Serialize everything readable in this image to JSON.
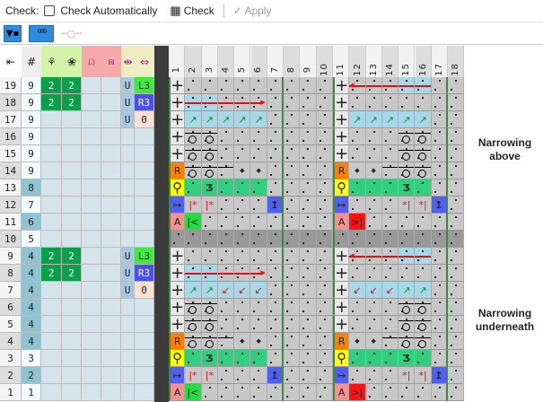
{
  "toolbar": {
    "check_label": "Check:",
    "check_auto_label": "Check Automatically",
    "check_auto_checked": false,
    "check_button": "Check",
    "apply_button": "Apply"
  },
  "toolbar2": {
    "filter_icon": "filter-icon",
    "cable_icon": "cable-icon",
    "cable_outline_icon": "cable-outline-icon"
  },
  "header": {
    "first": "⇤",
    "count": "#",
    "columns": [
      "1",
      "2",
      "3",
      "4",
      "5",
      "6",
      "7",
      "8",
      "9",
      "10",
      "11",
      "12",
      "13",
      "14",
      "15",
      "16",
      "17",
      "18"
    ]
  },
  "colors": {
    "green_header": "#d4f5a8",
    "pink_header": "#f7a8a8",
    "beige_header": "#efecc2",
    "dark_green": "#0aa04a",
    "L3": "#40e840",
    "R3": "#4a50f0",
    "zero": "#fbe2d0",
    "U": "#a8c8e0",
    "teal": "#8fc4d0"
  },
  "rows": [
    {
      "n": "19",
      "c": "9",
      "a": "2",
      "b": "2",
      "u": "U",
      "v": "L3",
      "t": false
    },
    {
      "n": "18",
      "c": "9",
      "a": "2",
      "b": "2",
      "u": "U",
      "v": "R3",
      "t": false
    },
    {
      "n": "17",
      "c": "9",
      "a": "",
      "b": "",
      "u": "U",
      "v": "0",
      "t": false
    },
    {
      "n": "16",
      "c": "9",
      "a": "",
      "b": "",
      "u": "",
      "v": "",
      "t": false
    },
    {
      "n": "15",
      "c": "9",
      "a": "",
      "b": "",
      "u": "",
      "v": "",
      "t": false
    },
    {
      "n": "14",
      "c": "9",
      "a": "",
      "b": "",
      "u": "",
      "v": "",
      "t": false
    },
    {
      "n": "13",
      "c": "8",
      "a": "",
      "b": "",
      "u": "",
      "v": "",
      "t": true
    },
    {
      "n": "12",
      "c": "7",
      "a": "",
      "b": "",
      "u": "",
      "v": "",
      "t": false
    },
    {
      "n": "11",
      "c": "6",
      "a": "",
      "b": "",
      "u": "",
      "v": "",
      "t": true
    },
    {
      "n": "10",
      "c": "5",
      "a": "",
      "b": "",
      "u": "",
      "v": "",
      "t": false
    },
    {
      "n": "9",
      "c": "4",
      "a": "2",
      "b": "2",
      "u": "U",
      "v": "L3",
      "t": true
    },
    {
      "n": "8",
      "c": "4",
      "a": "2",
      "b": "2",
      "u": "U",
      "v": "R3",
      "t": true
    },
    {
      "n": "7",
      "c": "4",
      "a": "",
      "b": "",
      "u": "U",
      "v": "0",
      "t": true
    },
    {
      "n": "6",
      "c": "4",
      "a": "",
      "b": "",
      "u": "",
      "v": "",
      "t": true
    },
    {
      "n": "5",
      "c": "4",
      "a": "",
      "b": "",
      "u": "",
      "v": "",
      "t": true
    },
    {
      "n": "4",
      "c": "4",
      "a": "",
      "b": "",
      "u": "",
      "v": "",
      "t": true
    },
    {
      "n": "3",
      "c": "3",
      "a": "",
      "b": "",
      "u": "",
      "v": "",
      "t": false
    },
    {
      "n": "2",
      "c": "2",
      "a": "",
      "b": "",
      "u": "",
      "v": "",
      "t": true
    },
    {
      "n": "1",
      "c": "1",
      "a": "",
      "b": "",
      "u": "",
      "v": "",
      "t": false
    }
  ],
  "chart": [
    "+ . . . . . . . . . + rh r r rb rb . .",
    "+ rb rb r r rr . . . . + . . . . . . .",
    "+ ne ne ne ne ne . . . . + ne ne ne ne ne . .",
    "+ c c . . . . . . . + . . . c c . .",
    "+ c c . . . . . . . + . . . c c . .",
    "R c c l k k . . . . R k k l c c . .",
    "Q g g3 g g g . . . . Q g g g g3 g . .",
    "M sl sl . . . I . . . M . . . sr sr I .",
    "A lt . . . . . . . . A gt . . . . . .",
    "x x x x x x x x x x x x x x x x x x",
    "+ . . . . . . . . . + rh r r rb rb . .",
    "+ rb rb r r rr . . . . + . . . . . . .",
    "+ ne ne sw sw sw . . . . + sw sw sw ne ne . .",
    "+ c c . . . . . . . + . . . c c . .",
    "+ c c . . . . . . . + . . . c c . .",
    "R c c l k k . . . . R k k l c c . .",
    "Q g g3 g g g . . . . Q g g g g3 g . .",
    "M sl sl . . . I . . . M . . . sr sr I .",
    "A lt . . . . . . . . A gt . . . . . ."
  ],
  "notes": {
    "above": "Narrowing above",
    "underneath": "Narrowing underneath"
  }
}
